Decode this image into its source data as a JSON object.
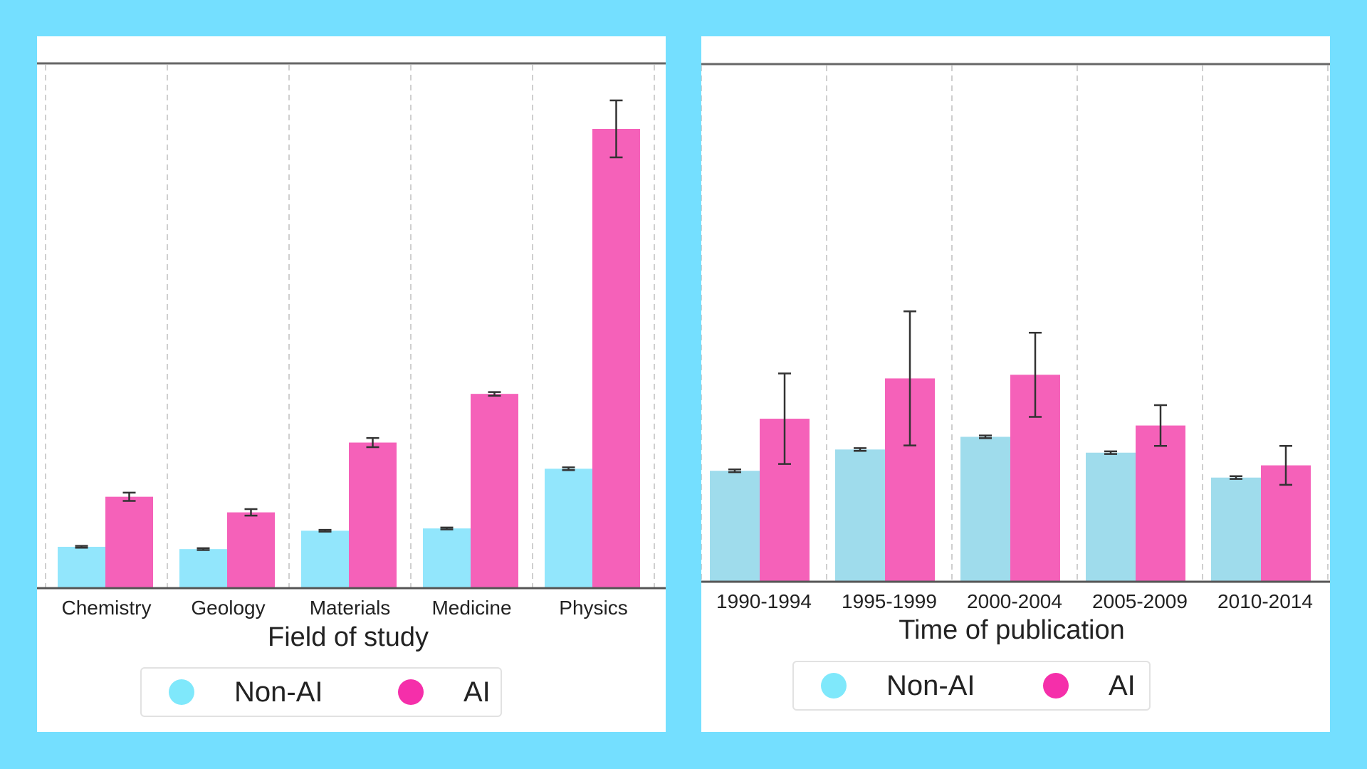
{
  "colors": {
    "background": "#74dfff",
    "left_nonai": "#92e6fc",
    "right_nonai": "#9fdcec",
    "ai": "#f561b9",
    "legend_nonai_dot": "#7fe8fb",
    "legend_ai_dot": "#f52faa"
  },
  "chart_data": [
    {
      "type": "bar",
      "xlabel": "Field of study",
      "ylabel": "",
      "ylim": [
        0,
        100
      ],
      "grid": "vertical dashed",
      "legend_placement": "bottom-center",
      "categories": [
        "Chemistry",
        "Geology",
        "Materials",
        "Medicine",
        "Physics"
      ],
      "series": [
        {
          "name": "Non-AI",
          "values": [
            9.0,
            8.5,
            12.5,
            13.0,
            26.0
          ],
          "errors": [
            0.2,
            0.2,
            0.2,
            0.2,
            0.3
          ]
        },
        {
          "name": "AI",
          "values": [
            19.9,
            16.5,
            31.7,
            42.3,
            100.0
          ],
          "errors": [
            0.9,
            0.7,
            1.0,
            0.4,
            6.2
          ]
        }
      ]
    },
    {
      "type": "bar",
      "xlabel": "Time of publication",
      "ylabel": "",
      "ylim": [
        0,
        100
      ],
      "grid": "vertical dashed",
      "legend_placement": "bottom-center",
      "categories": [
        "1990-1994",
        "1995-1999",
        "2000-2004",
        "2005-2009",
        "2010-2014"
      ],
      "series": [
        {
          "name": "Non-AI",
          "values": [
            24.5,
            29.2,
            32.0,
            28.5,
            23.0
          ],
          "errors": [
            0.3,
            0.3,
            0.3,
            0.3,
            0.3
          ]
        },
        {
          "name": "AI",
          "values": [
            36.0,
            44.9,
            45.7,
            34.5,
            25.7
          ],
          "errors": [
            10.0,
            14.8,
            9.3,
            4.5,
            4.3
          ]
        }
      ]
    }
  ]
}
